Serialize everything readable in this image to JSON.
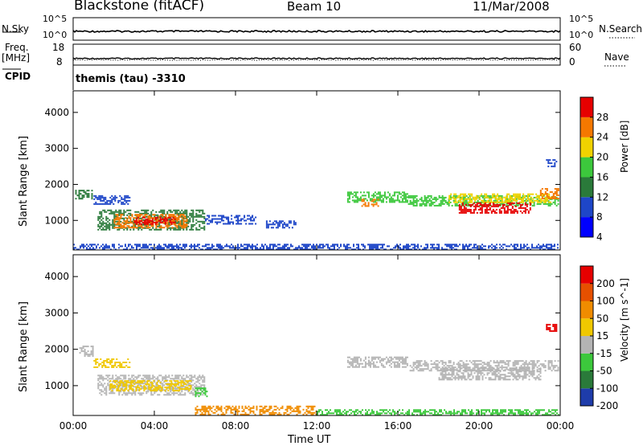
{
  "header": {
    "station": "Blackstone (fitACF)",
    "beam": "Beam 10",
    "date": "11/Mar/2008"
  },
  "top_panel": {
    "nsky_label": "N.Sky",
    "nsky_ticks": [
      "10^5",
      "10^0"
    ],
    "nsearch_label": "N.Search",
    "nsearch_ticks": [
      "10^5",
      "10^0"
    ],
    "freq_label": "Freq.",
    "freq_unit": "[MHz]",
    "freq_ticks": [
      "18",
      "8"
    ],
    "nave_label": "Nave",
    "nave_ticks": [
      "60",
      "0"
    ],
    "cpid_label": "CPID",
    "cpid_text": "themis (tau) -3310"
  },
  "chart_data": [
    {
      "type": "heatmap",
      "name": "power",
      "ylabel": "Slant Range [km]",
      "ylim": [
        180,
        4600
      ],
      "yticks": [
        1000,
        2000,
        3000,
        4000
      ],
      "xlim": [
        0,
        24
      ],
      "xticks": [
        "00:00",
        "04:00",
        "08:00",
        "12:00",
        "16:00",
        "20:00",
        "00:00"
      ],
      "colorbar": {
        "label": "Power [dB]",
        "ticks": [
          28,
          24,
          20,
          16,
          12,
          8,
          4
        ],
        "colors": [
          "#0000ff",
          "#1e46c8",
          "#2a7a3a",
          "#3cc83c",
          "#f0d200",
          "#f57800",
          "#e60000"
        ]
      },
      "regions": [
        {
          "t0": 0.1,
          "t1": 0.9,
          "r0": 1600,
          "r1": 1850,
          "level": 2
        },
        {
          "t0": 1.0,
          "t1": 2.8,
          "r0": 1450,
          "r1": 1700,
          "level": 1
        },
        {
          "t0": 1.2,
          "t1": 6.5,
          "r0": 750,
          "r1": 1300,
          "level": 2
        },
        {
          "t0": 2.0,
          "t1": 5.6,
          "r0": 780,
          "r1": 1180,
          "level": 5
        },
        {
          "t0": 3.0,
          "t1": 5.0,
          "r0": 880,
          "r1": 1100,
          "level": 6
        },
        {
          "t0": 6.5,
          "t1": 9.0,
          "r0": 900,
          "r1": 1150,
          "level": 1
        },
        {
          "t0": 9.5,
          "t1": 11.0,
          "r0": 780,
          "r1": 1000,
          "level": 1
        },
        {
          "t0": 13.5,
          "t1": 16.5,
          "r0": 1500,
          "r1": 1800,
          "level": 3
        },
        {
          "t0": 14.2,
          "t1": 15.0,
          "r0": 1380,
          "r1": 1600,
          "level": 5
        },
        {
          "t0": 16.5,
          "t1": 23.9,
          "r0": 1400,
          "r1": 1700,
          "level": 3
        },
        {
          "t0": 18.5,
          "t1": 23.5,
          "r0": 1500,
          "r1": 1750,
          "level": 4
        },
        {
          "t0": 19.0,
          "t1": 22.5,
          "r0": 1200,
          "r1": 1500,
          "level": 6
        },
        {
          "t0": 23.0,
          "t1": 23.9,
          "r0": 1600,
          "r1": 1900,
          "level": 5
        },
        {
          "t0": 0.0,
          "t1": 23.9,
          "r0": 200,
          "r1": 350,
          "level": 1
        },
        {
          "t0": 23.3,
          "t1": 23.8,
          "r0": 2500,
          "r1": 2700,
          "level": 1
        }
      ]
    },
    {
      "type": "heatmap",
      "name": "velocity",
      "ylabel": "Slant Range [km]",
      "ylim": [
        180,
        4600
      ],
      "yticks": [
        1000,
        2000,
        3000,
        4000
      ],
      "xlim": [
        0,
        24
      ],
      "xlabel": "Time UT",
      "xticks": [
        "00:00",
        "04:00",
        "08:00",
        "12:00",
        "16:00",
        "20:00",
        "00:00"
      ],
      "colorbar": {
        "label": "Velocity [m s^-1]",
        "ticks": [
          200,
          100,
          50,
          15,
          -15,
          -50,
          -100,
          -200
        ],
        "colors": [
          "#1e3caa",
          "#2a7a3a",
          "#3cc83c",
          "#b4b4b4",
          "#f0c800",
          "#f08c00",
          "#e65000",
          "#e60000"
        ]
      },
      "regions": [
        {
          "t0": 0.3,
          "t1": 1.0,
          "r0": 1800,
          "r1": 2100,
          "level": 3
        },
        {
          "t0": 1.0,
          "t1": 2.8,
          "r0": 1500,
          "r1": 1750,
          "level": 4
        },
        {
          "t0": 1.2,
          "t1": 6.5,
          "r0": 750,
          "r1": 1300,
          "level": 3
        },
        {
          "t0": 1.8,
          "t1": 5.8,
          "r0": 850,
          "r1": 1150,
          "level": 4
        },
        {
          "t0": 6.0,
          "t1": 6.6,
          "r0": 700,
          "r1": 950,
          "level": 2
        },
        {
          "t0": 13.5,
          "t1": 16.5,
          "r0": 1500,
          "r1": 1800,
          "level": 3
        },
        {
          "t0": 16.5,
          "t1": 23.9,
          "r0": 1400,
          "r1": 1700,
          "level": 3
        },
        {
          "t0": 18.0,
          "t1": 23.0,
          "r0": 1150,
          "r1": 1500,
          "level": 3
        },
        {
          "t0": 6.0,
          "t1": 12.0,
          "r0": 200,
          "r1": 450,
          "level": 5
        },
        {
          "t0": 12.0,
          "t1": 23.9,
          "r0": 200,
          "r1": 350,
          "level": 2
        },
        {
          "t0": 23.3,
          "t1": 23.8,
          "r0": 2500,
          "r1": 2700,
          "level": 7
        }
      ]
    }
  ]
}
